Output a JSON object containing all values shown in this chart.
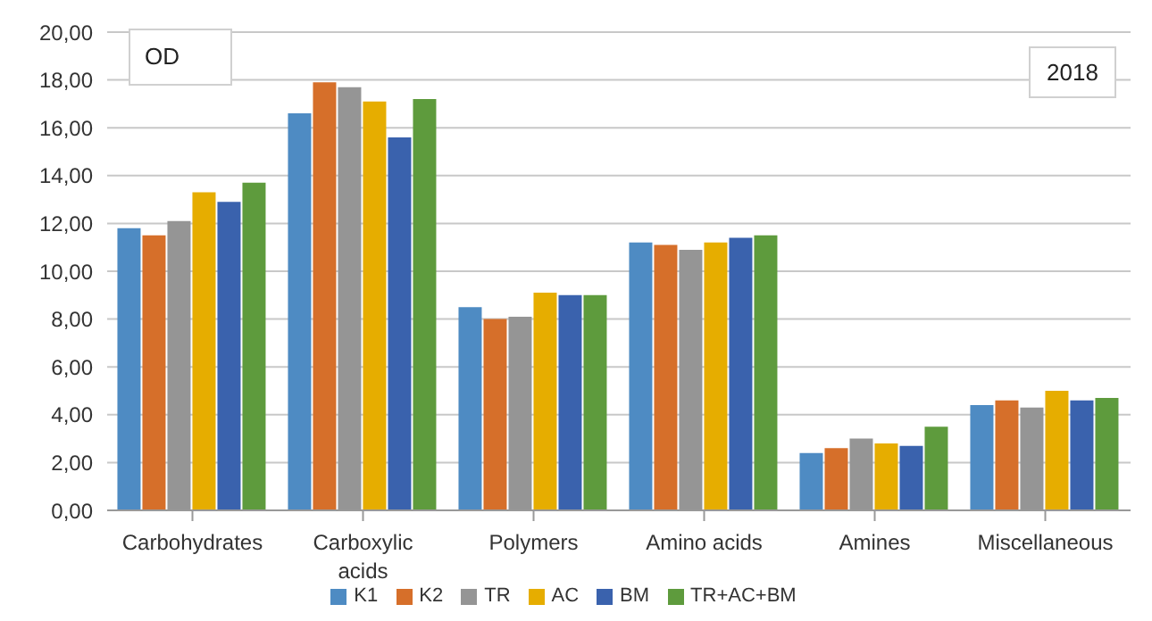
{
  "chart_data": {
    "type": "bar",
    "categories": [
      "Carbohydrates",
      "Carboxylic acids",
      "Polymers",
      "Amino acids",
      "Amines",
      "Miscellaneous"
    ],
    "series": [
      {
        "name": "K1",
        "color": "#4e8bc3",
        "values": [
          11.8,
          16.6,
          8.5,
          11.2,
          2.4,
          4.4
        ]
      },
      {
        "name": "K2",
        "color": "#d66f2a",
        "values": [
          11.5,
          17.9,
          8.0,
          11.1,
          2.6,
          4.6
        ]
      },
      {
        "name": "TR",
        "color": "#959595",
        "values": [
          12.1,
          17.7,
          8.1,
          10.9,
          3.0,
          4.3
        ]
      },
      {
        "name": "AC",
        "color": "#e6ad00",
        "values": [
          13.3,
          17.1,
          9.1,
          11.2,
          2.8,
          5.0
        ]
      },
      {
        "name": "BM",
        "color": "#3a62ad",
        "values": [
          12.9,
          15.6,
          9.0,
          11.4,
          2.7,
          4.6
        ]
      },
      {
        "name": "TR+AC+BM",
        "color": "#5e9b3d",
        "values": [
          13.7,
          17.2,
          9.0,
          11.5,
          3.5,
          4.7
        ]
      }
    ],
    "ylim": [
      0,
      20
    ],
    "yticks": [
      {
        "value": 0,
        "label": "0,00"
      },
      {
        "value": 2,
        "label": "2,00"
      },
      {
        "value": 4,
        "label": "4,00"
      },
      {
        "value": 6,
        "label": "6,00"
      },
      {
        "value": 8,
        "label": "8,00"
      },
      {
        "value": 10,
        "label": "10,00"
      },
      {
        "value": 12,
        "label": "12,00"
      },
      {
        "value": 14,
        "label": "14,00"
      },
      {
        "value": 16,
        "label": "16,00"
      },
      {
        "value": 18,
        "label": "18,00"
      },
      {
        "value": 20,
        "label": "20,00"
      }
    ],
    "grid": "y",
    "legend": "bottom",
    "annotations": [
      "OD",
      "2018"
    ]
  }
}
